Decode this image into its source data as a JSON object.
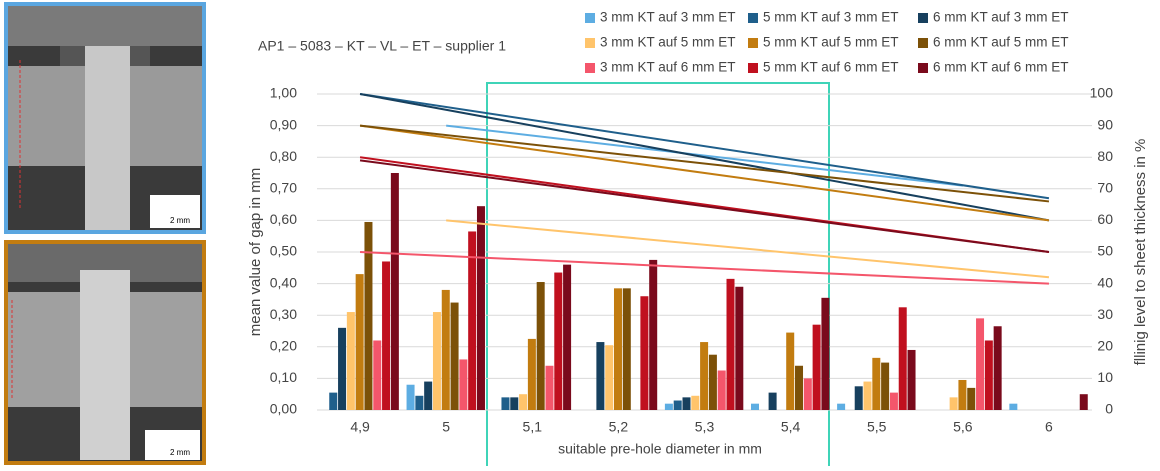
{
  "images": [
    {
      "scale_label": "2 mm"
    },
    {
      "scale_label": "2 mm"
    }
  ],
  "chart_data": {
    "type": "bar",
    "title": "AP1 – 5083 – KT – VL – ET – supplier 1",
    "x_label": "suitable pre-hole diameter in mm",
    "y_label": "mean value of gap in mm",
    "y2_label": "fllinig level to sheet thickness in %",
    "categories": [
      "4,9",
      "5",
      "5,1",
      "5,2",
      "5,3",
      "5,4",
      "5,5",
      "5,6",
      "6"
    ],
    "ylim": [
      0,
      1
    ],
    "yticks": [
      {
        "value": 0,
        "label": "0,00"
      },
      {
        "value": 0.1,
        "label": "0,10"
      },
      {
        "value": 0.2,
        "label": "0,20"
      },
      {
        "value": 0.3,
        "label": "0,30"
      },
      {
        "value": 0.4,
        "label": "0,40"
      },
      {
        "value": 0.5,
        "label": "0,50"
      },
      {
        "value": 0.6,
        "label": "0,60"
      },
      {
        "value": 0.7,
        "label": "0,70"
      },
      {
        "value": 0.8,
        "label": "0,80"
      },
      {
        "value": 0.9,
        "label": "0,90"
      },
      {
        "value": 1,
        "label": "1,00"
      }
    ],
    "y2lim": [
      0,
      100
    ],
    "y2ticks": [
      0,
      10,
      20,
      30,
      40,
      50,
      60,
      70,
      80,
      90,
      100
    ],
    "grid": true,
    "series": [
      {
        "name": "3 mm KT auf 3 mm ET",
        "color": "#5dade2",
        "values": [
          0,
          0.08,
          0,
          0,
          0.02,
          0.02,
          0.02,
          0,
          0.02
        ],
        "trend": {
          "axis": "y2",
          "categories": [
            "5",
            "5,6"
          ],
          "values": [
            90,
            71
          ]
        }
      },
      {
        "name": "5 mm KT auf 3 mm ET",
        "color": "#1f5f8b",
        "values": [
          0.055,
          0.045,
          0.04,
          0,
          0.03,
          0,
          0,
          0,
          0
        ],
        "trend": {
          "axis": "y2",
          "categories": [
            "4,9",
            "6"
          ],
          "values": [
            100,
            67
          ]
        }
      },
      {
        "name": "6 mm KT auf 3 mm ET",
        "color": "#17405e",
        "values": [
          0.26,
          0.09,
          0.04,
          0.215,
          0.04,
          0.055,
          0.075,
          0,
          0
        ],
        "trend": {
          "axis": "y2",
          "categories": [
            "4,9",
            "6"
          ],
          "values": [
            100,
            60
          ]
        }
      },
      {
        "name": "3 mm KT auf 5 mm ET",
        "color": "#ffc46b",
        "values": [
          0.31,
          0.31,
          0.05,
          0.205,
          0.045,
          0,
          0.09,
          0.04,
          0
        ],
        "trend": {
          "axis": "y2",
          "categories": [
            "5",
            "6"
          ],
          "values": [
            60,
            42
          ]
        }
      },
      {
        "name": "5 mm KT auf 5 mm ET",
        "color": "#c27c10",
        "values": [
          0.43,
          0.38,
          0.225,
          0.385,
          0.215,
          0.245,
          0.165,
          0.095,
          0
        ],
        "trend": {
          "axis": "y2",
          "categories": [
            "4,9",
            "6"
          ],
          "values": [
            90,
            60
          ]
        }
      },
      {
        "name": "6 mm KT auf 5 mm ET",
        "color": "#7c5108",
        "values": [
          0.595,
          0.34,
          0.405,
          0.385,
          0.175,
          0.14,
          0.15,
          0.07,
          0
        ],
        "trend": {
          "axis": "y2",
          "categories": [
            "4,9",
            "6"
          ],
          "values": [
            90,
            66
          ]
        }
      },
      {
        "name": "3 mm KT auf 6 mm ET",
        "color": "#f4566b",
        "values": [
          0.22,
          0.16,
          0.14,
          0,
          0.125,
          0.1,
          0.055,
          0.29,
          0
        ],
        "trend": {
          "axis": "y2",
          "categories": [
            "4,9",
            "6"
          ],
          "values": [
            50,
            40
          ]
        }
      },
      {
        "name": "5 mm KT auf 6 mm ET",
        "color": "#c0101f",
        "values": [
          0.47,
          0.565,
          0.435,
          0.36,
          0.415,
          0.27,
          0.325,
          0.22,
          0
        ],
        "trend": {
          "axis": "y2",
          "categories": [
            "4,9",
            "6"
          ],
          "values": [
            80,
            50
          ]
        }
      },
      {
        "name": "6 mm KT auf 6 mm ET",
        "color": "#7a0a1c",
        "values": [
          0.75,
          0.645,
          0.46,
          0.475,
          0.39,
          0.355,
          0.19,
          0.265,
          0.05
        ],
        "trend": {
          "axis": "y2",
          "categories": [
            "4,9",
            "6"
          ],
          "values": [
            79,
            50
          ]
        }
      }
    ]
  }
}
